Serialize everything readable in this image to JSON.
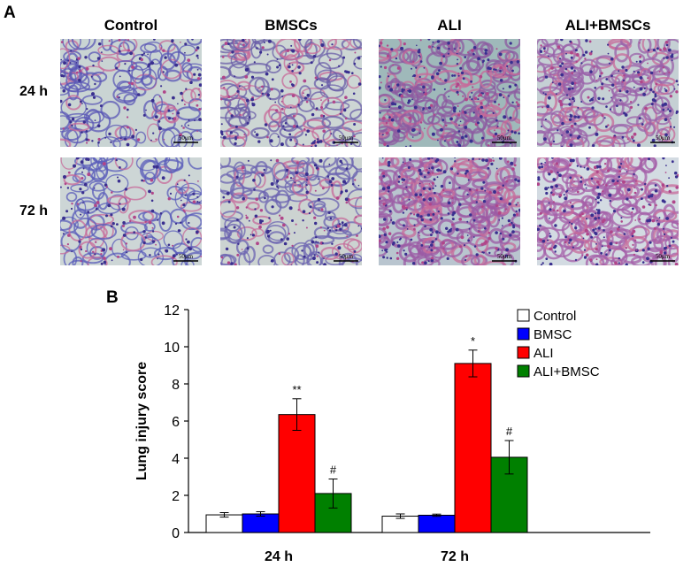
{
  "panel_a": {
    "letter": "A",
    "columns": [
      "Control",
      "BMSCs",
      "ALI",
      "ALI+BMSCs"
    ],
    "rows": [
      "24 h",
      "72 h"
    ],
    "scale_bar_label": "50μm"
  },
  "panel_b": {
    "letter": "B"
  },
  "chart_data": {
    "type": "bar",
    "title": "",
    "xlabel": "",
    "ylabel": "Lung injury score",
    "categories": [
      "24 h",
      "72 h"
    ],
    "ylim": [
      0,
      12
    ],
    "yticks": [
      0,
      2,
      4,
      6,
      8,
      10,
      12
    ],
    "grid": false,
    "legend_position": "top-right",
    "series": [
      {
        "name": "Control",
        "color": "#ffffff",
        "values": [
          0.95,
          0.88
        ],
        "errors": [
          0.12,
          0.12
        ]
      },
      {
        "name": "BMSC",
        "color": "#0000ff",
        "values": [
          1.0,
          0.93
        ],
        "errors": [
          0.12,
          0.06
        ]
      },
      {
        "name": "ALI",
        "color": "#ff0000",
        "values": [
          6.35,
          9.1
        ],
        "errors": [
          0.85,
          0.72
        ]
      },
      {
        "name": "ALI+BMSC",
        "color": "#008000",
        "values": [
          2.1,
          4.05
        ],
        "errors": [
          0.78,
          0.9
        ]
      }
    ],
    "annotations": [
      {
        "category": 0,
        "series": 2,
        "text": "**"
      },
      {
        "category": 0,
        "series": 3,
        "text": "#"
      },
      {
        "category": 1,
        "series": 2,
        "text": "*"
      },
      {
        "category": 1,
        "series": 3,
        "text": "#"
      }
    ]
  }
}
